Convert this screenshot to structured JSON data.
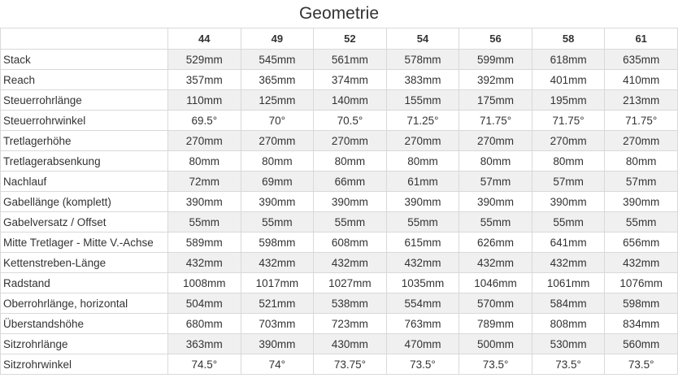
{
  "title": "Geometrie",
  "sizes": [
    "44",
    "49",
    "52",
    "54",
    "56",
    "58",
    "61"
  ],
  "rows": [
    {
      "label": "Stack",
      "values": [
        "529mm",
        "545mm",
        "561mm",
        "578mm",
        "599mm",
        "618mm",
        "635mm"
      ]
    },
    {
      "label": "Reach",
      "values": [
        "357mm",
        "365mm",
        "374mm",
        "383mm",
        "392mm",
        "401mm",
        "410mm"
      ]
    },
    {
      "label": "Steuerrohrlänge",
      "values": [
        "110mm",
        "125mm",
        "140mm",
        "155mm",
        "175mm",
        "195mm",
        "213mm"
      ]
    },
    {
      "label": "Steuerrohrwinkel",
      "values": [
        "69.5°",
        "70°",
        "70.5°",
        "71.25°",
        "71.75°",
        "71.75°",
        "71.75°"
      ]
    },
    {
      "label": "Tretlagerhöhe",
      "values": [
        "270mm",
        "270mm",
        "270mm",
        "270mm",
        "270mm",
        "270mm",
        "270mm"
      ]
    },
    {
      "label": "Tretlagerabsenkung",
      "values": [
        "80mm",
        "80mm",
        "80mm",
        "80mm",
        "80mm",
        "80mm",
        "80mm"
      ]
    },
    {
      "label": "Nachlauf",
      "values": [
        "72mm",
        "69mm",
        "66mm",
        "61mm",
        "57mm",
        "57mm",
        "57mm"
      ]
    },
    {
      "label": "Gabellänge (komplett)",
      "values": [
        "390mm",
        "390mm",
        "390mm",
        "390mm",
        "390mm",
        "390mm",
        "390mm"
      ]
    },
    {
      "label": "Gabelversatz / Offset",
      "values": [
        "55mm",
        "55mm",
        "55mm",
        "55mm",
        "55mm",
        "55mm",
        "55mm"
      ]
    },
    {
      "label": "Mitte Tretlager - Mitte V.-Achse",
      "values": [
        "589mm",
        "598mm",
        "608mm",
        "615mm",
        "626mm",
        "641mm",
        "656mm"
      ]
    },
    {
      "label": "Kettenstreben-Länge",
      "values": [
        "432mm",
        "432mm",
        "432mm",
        "432mm",
        "432mm",
        "432mm",
        "432mm"
      ]
    },
    {
      "label": "Radstand",
      "values": [
        "1008mm",
        "1017mm",
        "1027mm",
        "1035mm",
        "1046mm",
        "1061mm",
        "1076mm"
      ]
    },
    {
      "label": "Oberrohrlänge, horizontal",
      "values": [
        "504mm",
        "521mm",
        "538mm",
        "554mm",
        "570mm",
        "584mm",
        "598mm"
      ]
    },
    {
      "label": "Überstandshöhe",
      "values": [
        "680mm",
        "703mm",
        "723mm",
        "763mm",
        "789mm",
        "808mm",
        "834mm"
      ]
    },
    {
      "label": "Sitzrohrlänge",
      "values": [
        "363mm",
        "390mm",
        "430mm",
        "470mm",
        "500mm",
        "530mm",
        "560mm"
      ]
    },
    {
      "label": "Sitzrohrwinkel",
      "values": [
        "74.5°",
        "74°",
        "73.75°",
        "73.5°",
        "73.5°",
        "73.5°",
        "73.5°"
      ]
    }
  ],
  "colors": {
    "stripe": "#f0f0f0",
    "border": "#d9d9d9",
    "text": "#333333"
  }
}
